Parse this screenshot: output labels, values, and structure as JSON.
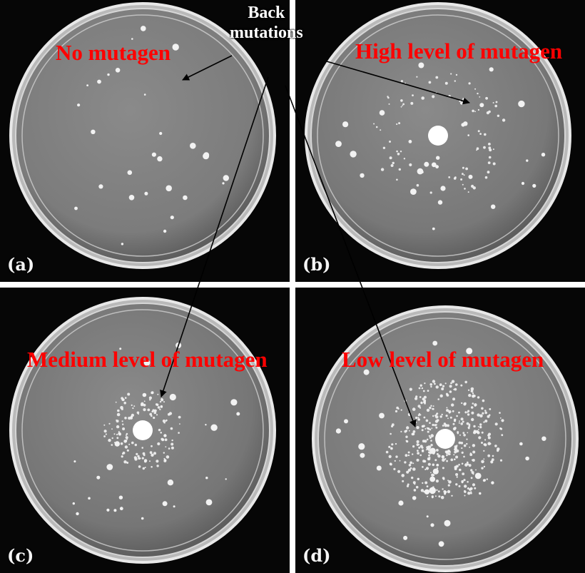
{
  "figure": {
    "callout": {
      "line1": "Back",
      "line2": "mutations"
    },
    "panels": [
      {
        "letter": "(a)",
        "label": "No mutagen",
        "disk": false,
        "ring": "none",
        "bg": "#7c7c7c"
      },
      {
        "letter": "(b)",
        "label": "High level of mutagen",
        "disk": true,
        "ring": "wide",
        "bg": "#787878"
      },
      {
        "letter": "(c)",
        "label": "Medium level of mutagen",
        "disk": true,
        "ring": "medium",
        "bg": "#767676"
      },
      {
        "letter": "(d)",
        "label": "Low level of mutagen",
        "disk": true,
        "ring": "dense",
        "bg": "#7a7a7a"
      }
    ],
    "colors": {
      "label": "#ff0000",
      "frame": "#060606",
      "dish_rim": "#e8e8e8",
      "colony": "#f2f2f2"
    }
  }
}
